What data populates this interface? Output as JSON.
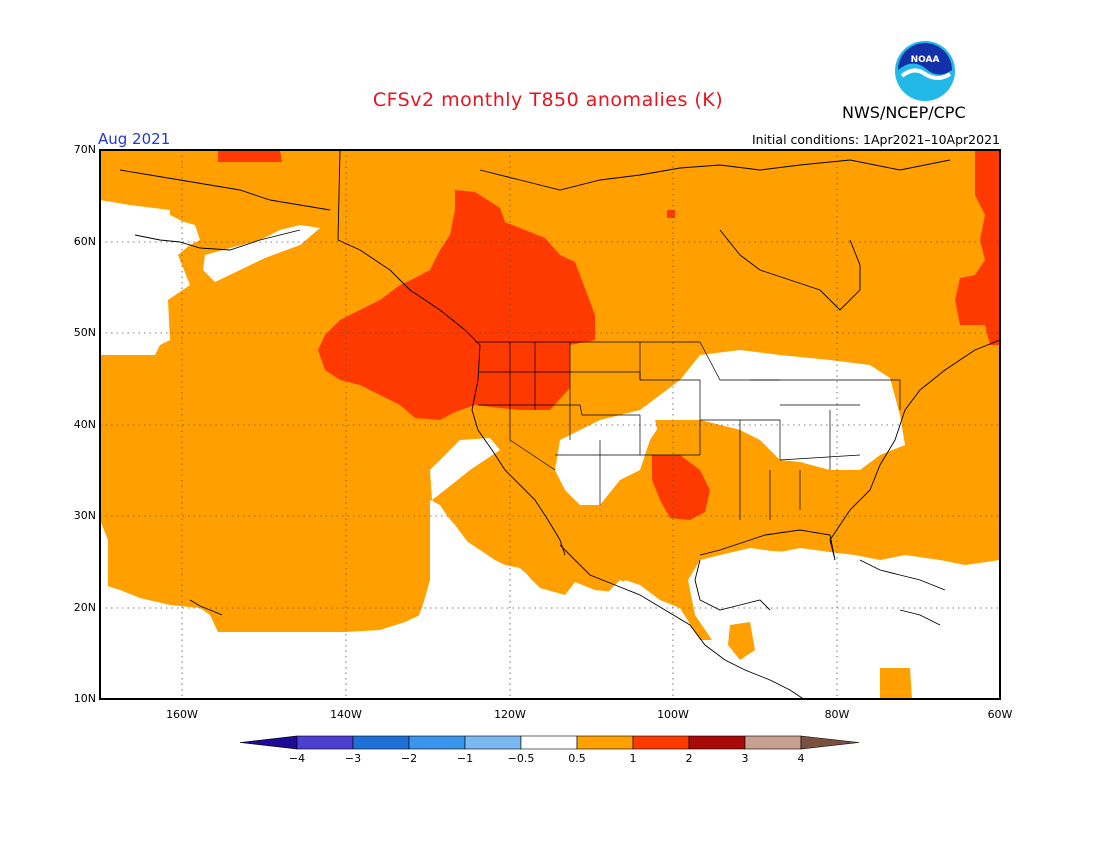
{
  "title": "CFSv2 monthly T850 anomalies (K)",
  "agency": "NWS/NCEP/CPC",
  "initial_conditions": "Initial conditions: 1Apr2021–10Apr2021",
  "month_label": "Aug 2021",
  "logo_text": "NOAA",
  "lat_labels": [
    "70N",
    "60N",
    "50N",
    "40N",
    "30N",
    "20N",
    "10N"
  ],
  "lon_labels": [
    "160W",
    "140W",
    "120W",
    "100W",
    "80W",
    "60W"
  ],
  "colorbar": {
    "labels": [
      "−4",
      "−3",
      "−2",
      "−1",
      "−0.5",
      "0.5",
      "1",
      "2",
      "3",
      "4"
    ],
    "colors": [
      "#1e0a96",
      "#4a3fd0",
      "#1f6fd8",
      "#3a95ec",
      "#7ab8f2",
      "#ffffff",
      "#ffa000",
      "#ff3a00",
      "#a80a0a",
      "#c8a090",
      "#7a5040"
    ]
  },
  "anomaly_colors": {
    "weak_warm": "#ffa000",
    "strong_warm": "#ff3a00",
    "neutral": "#ffffff"
  }
}
